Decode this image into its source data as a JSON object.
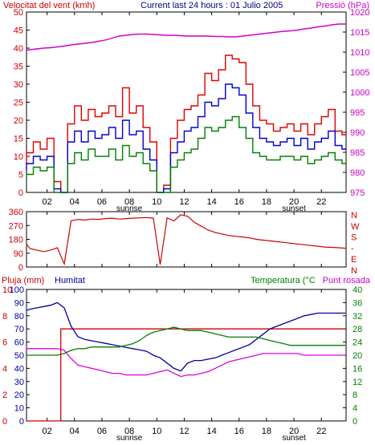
{
  "header": {
    "left_title": "Velocitat del vent (kmh)",
    "center_title": "Current last 24 hours : 01 Julio 2005",
    "right_title": "Pressió (hPa)"
  },
  "panel3_header": {
    "rain_label": "Pluja (mm)",
    "humidity_label": "Humitat",
    "temperature_label": "Temperatura (°C",
    "dewpoint_label": "Punt rosada"
  },
  "colors": {
    "wind_gust": "#e00000",
    "wind_avg": "#0000d0",
    "wind_min": "#008000",
    "pressure": "#cc00cc",
    "direction": "#cc0000",
    "humidity": "#0000a0",
    "temperature": "#008000",
    "dewpoint": "#dd00dd",
    "rain": "#cc0000",
    "axis": "#000000"
  },
  "x_axis": {
    "hour_ticks": [
      "02",
      "04",
      "06",
      "08",
      "10",
      "12",
      "14",
      "16",
      "18",
      "20",
      "22"
    ],
    "sunrise_label": "sunrise",
    "sunset_label": "sunset"
  },
  "chart_data": [
    {
      "type": "line",
      "name": "wind-pressure",
      "x": [
        0,
        0.5,
        1,
        1.5,
        2,
        2.5,
        3,
        3.5,
        4,
        4.5,
        5,
        5.5,
        6,
        6.5,
        7,
        7.5,
        8,
        8.5,
        9,
        9.5,
        10,
        10.5,
        11,
        11.5,
        12,
        12.5,
        13,
        13.5,
        14,
        14.5,
        15,
        15.5,
        16,
        16.5,
        17,
        17.5,
        18,
        18.5,
        19,
        19.5,
        20,
        20.5,
        21,
        21.5,
        22,
        22.5,
        23,
        23.5
      ],
      "x_range": [
        0.5,
        23.8
      ],
      "series": [
        {
          "axis": "left",
          "values": [
            8,
            11,
            14,
            12,
            15,
            3,
            0,
            19,
            24,
            20,
            23,
            21,
            22,
            24,
            21,
            29,
            22,
            24,
            18,
            14,
            0,
            2,
            15,
            20,
            23,
            24,
            27,
            33,
            31,
            34,
            38,
            37,
            36,
            30,
            24,
            20,
            19,
            17,
            18,
            19,
            17,
            19,
            16,
            19,
            21,
            23,
            17,
            16
          ]
        },
        {
          "axis": "left",
          "values": [
            6,
            8,
            10,
            9,
            10,
            1,
            0,
            14,
            17,
            14,
            17,
            15,
            16,
            18,
            15,
            20,
            16,
            17,
            12,
            9,
            0,
            1,
            11,
            14,
            17,
            18,
            21,
            25,
            24,
            26,
            30,
            29,
            27,
            22,
            18,
            15,
            14,
            13,
            14,
            15,
            13,
            15,
            12,
            14,
            15,
            17,
            13,
            12
          ]
        },
        {
          "axis": "left",
          "values": [
            4,
            5,
            7,
            6,
            7,
            0,
            0,
            8,
            11,
            9,
            12,
            10,
            10,
            12,
            9,
            13,
            10,
            11,
            8,
            6,
            0,
            0,
            7,
            9,
            11,
            12,
            15,
            18,
            17,
            18,
            20,
            21,
            18,
            15,
            11,
            10,
            9,
            9,
            10,
            10,
            9,
            10,
            8,
            9,
            10,
            11,
            9,
            8
          ]
        },
        {
          "axis": "right",
          "values": [
            1010.5,
            1010.6,
            1010.8,
            1011,
            1011.1,
            1011.3,
            1011.5,
            1011.8,
            1012,
            1012.2,
            1012.4,
            1012.7,
            1013,
            1013.5,
            1014,
            1014.2,
            1014.4,
            1014.5,
            1014.5,
            1014.4,
            1014.3,
            1014.2,
            1014.2,
            1014.1,
            1014,
            1014,
            1014,
            1014,
            1013.9,
            1013.9,
            1013.8,
            1013.8,
            1014,
            1014.2,
            1014.4,
            1014.6,
            1014.8,
            1015,
            1015.2,
            1015.3,
            1015.5,
            1015.8,
            1016,
            1016.3,
            1016.5,
            1016.8,
            1017,
            1017
          ]
        }
      ],
      "y_left_range": [
        0,
        50
      ],
      "y_left_ticks": [
        0,
        5,
        10,
        15,
        20,
        25,
        30,
        35,
        40,
        45,
        50
      ],
      "y_right_range": [
        975,
        1020
      ],
      "y_right_ticks": [
        975,
        980,
        985,
        990,
        995,
        1000,
        1005,
        1010,
        1015,
        1020
      ],
      "grid": false
    },
    {
      "type": "line",
      "name": "wind-direction",
      "x": [
        0,
        0.5,
        1,
        1.5,
        2,
        2.5,
        3,
        3.5,
        4,
        4.5,
        5,
        5.5,
        6,
        6.5,
        7,
        7.5,
        8,
        8.5,
        9,
        9.5,
        10,
        10.5,
        11,
        11.5,
        12,
        12.5,
        13,
        13.5,
        14,
        14.5,
        15,
        15.5,
        16,
        16.5,
        17,
        17.5,
        18,
        18.5,
        19,
        19.5,
        20,
        20.5,
        21,
        21.5,
        22,
        22.5,
        23,
        23.5
      ],
      "x_range": [
        0.5,
        23.8
      ],
      "series": [
        {
          "axis": "left",
          "values": [
            150,
            120,
            110,
            100,
            110,
            125,
            20,
            300,
            310,
            305,
            312,
            310,
            315,
            318,
            312,
            315,
            318,
            320,
            322,
            318,
            15,
            320,
            300,
            340,
            330,
            290,
            265,
            240,
            225,
            215,
            205,
            200,
            195,
            190,
            180,
            175,
            170,
            165,
            160,
            155,
            150,
            145,
            140,
            135,
            130,
            128,
            125,
            122
          ]
        }
      ],
      "y_left_range": [
        0,
        360
      ],
      "y_left_ticks": [
        0,
        90,
        180,
        270,
        360
      ],
      "y_right_labels": [
        "N",
        "W",
        "S",
        "-",
        "E",
        "N"
      ],
      "grid": false
    },
    {
      "type": "line",
      "name": "rain-humidity-temperature",
      "x": [
        0,
        0.5,
        1,
        1.5,
        2,
        2.5,
        3,
        3.5,
        4,
        4.5,
        5,
        5.5,
        6,
        6.5,
        7,
        7.5,
        8,
        8.5,
        9,
        9.5,
        10,
        10.5,
        11,
        11.5,
        12,
        12.5,
        13,
        13.5,
        14,
        14.5,
        15,
        15.5,
        16,
        16.5,
        17,
        17.5,
        18,
        18.5,
        19,
        19.5,
        20,
        20.5,
        21,
        21.5,
        22,
        22.5,
        23,
        23.5
      ],
      "x_range": [
        0.5,
        23.8
      ],
      "series": [
        {
          "axis": "left-rain",
          "values": [
            0,
            0,
            0,
            0,
            0,
            0,
            7,
            7,
            7,
            7,
            7,
            7,
            7,
            7,
            7,
            7,
            7,
            7,
            7,
            7,
            7,
            7,
            7,
            7,
            7,
            7,
            7,
            7,
            7,
            7,
            7,
            7,
            7,
            7,
            7,
            7,
            7,
            7,
            7,
            7,
            7,
            7,
            7,
            7,
            7,
            7,
            7,
            7
          ]
        },
        {
          "axis": "left-humidity",
          "values": [
            84,
            85,
            86,
            87,
            88,
            90,
            86,
            72,
            64,
            62,
            61,
            60,
            59,
            58,
            57,
            56,
            55,
            54,
            53,
            50,
            48,
            44,
            40,
            38,
            44,
            46,
            46,
            47,
            48,
            50,
            52,
            54,
            56,
            58,
            62,
            66,
            70,
            72,
            74,
            76,
            78,
            80,
            81,
            82,
            82,
            82,
            82,
            82
          ]
        },
        {
          "axis": "right-temp",
          "values": [
            20,
            20,
            20,
            20,
            20,
            20,
            20.5,
            21.5,
            22,
            22,
            22.5,
            22.5,
            22.5,
            22.5,
            22.5,
            23,
            23.5,
            24.5,
            26,
            27,
            27.5,
            28,
            28.5,
            28,
            27.5,
            27.5,
            27.5,
            27,
            26.5,
            26,
            25.5,
            25.5,
            25.5,
            25.5,
            25.5,
            25,
            24.5,
            24,
            23.5,
            23,
            23,
            23,
            23,
            23,
            23,
            23,
            23,
            23
          ]
        },
        {
          "axis": "right-temp",
          "values": [
            22,
            22,
            22,
            22,
            22,
            22,
            21.5,
            19,
            17,
            16.5,
            16,
            15.5,
            15,
            14.5,
            14.5,
            14,
            14,
            14,
            14,
            14.5,
            15,
            15.5,
            14.5,
            13.5,
            14,
            14,
            14.5,
            15,
            16,
            17,
            18,
            18.5,
            19,
            19.5,
            20,
            20.5,
            20.5,
            20.5,
            20.5,
            20.5,
            20.5,
            20,
            20,
            20,
            20,
            20,
            20,
            20
          ]
        }
      ],
      "y_left_rain_range": [
        0,
        10
      ],
      "y_left_rain_ticks": [
        0,
        2,
        4,
        6,
        8,
        10
      ],
      "y_left_humidity_range": [
        0,
        100
      ],
      "y_left_humidity_ticks": [
        0,
        10,
        20,
        30,
        40,
        50,
        60,
        70,
        80,
        90,
        100
      ],
      "y_right_temp_range": [
        0,
        40
      ],
      "y_right_temp_ticks": [
        0,
        4,
        8,
        12,
        16,
        20,
        24,
        28,
        32,
        36,
        40
      ],
      "grid": false
    }
  ]
}
